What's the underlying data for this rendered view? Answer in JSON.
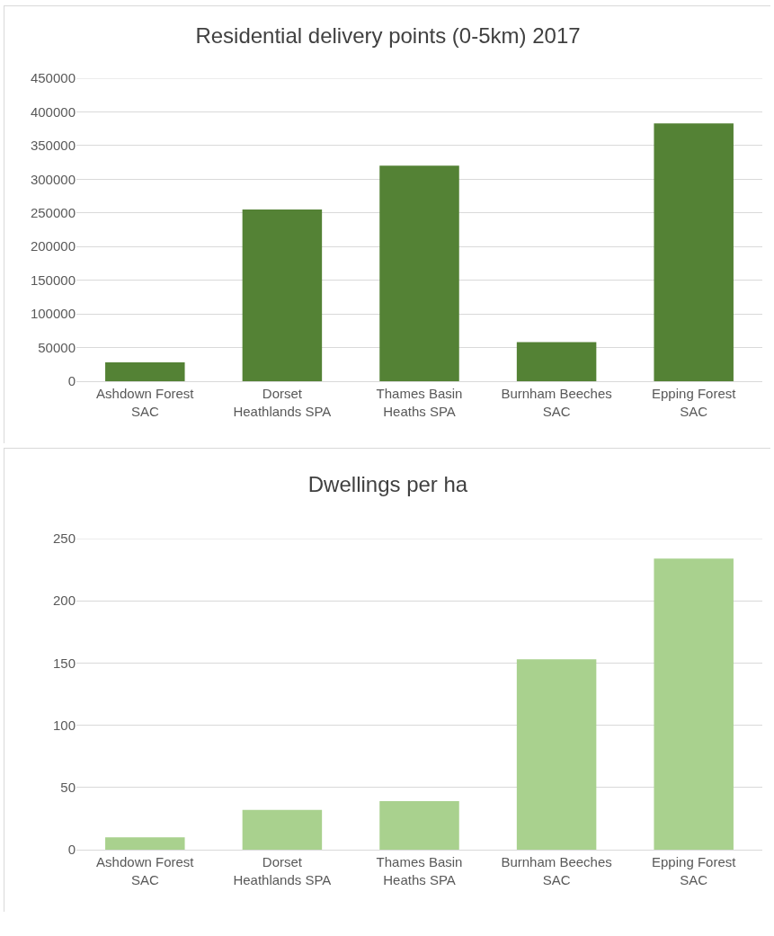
{
  "chart_data": [
    {
      "type": "bar",
      "title": "Residential delivery points (0-5km) 2017",
      "categories": [
        "Ashdown Forest SAC",
        "Dorset Heathlands SPA",
        "Thames Basin Heaths SPA",
        "Burnham Beeches SAC",
        "Epping Forest SAC"
      ],
      "values": [
        28000,
        255000,
        320000,
        58000,
        383000
      ],
      "color": "#548235",
      "ylim": [
        0,
        450000
      ],
      "yticks": [
        0,
        50000,
        100000,
        150000,
        200000,
        250000,
        300000,
        350000,
        400000,
        450000
      ],
      "grid": "y"
    },
    {
      "type": "bar",
      "title": "Dwellings per ha",
      "categories": [
        "Ashdown Forest SAC",
        "Dorset Heathlands SPA",
        "Thames Basin Heaths SPA",
        "Burnham Beeches SAC",
        "Epping Forest SAC"
      ],
      "values": [
        10,
        32,
        39,
        153,
        234
      ],
      "color": "#a9d18e",
      "ylim": [
        0,
        250
      ],
      "yticks": [
        0,
        50,
        100,
        150,
        200,
        250
      ],
      "grid": "y"
    }
  ]
}
